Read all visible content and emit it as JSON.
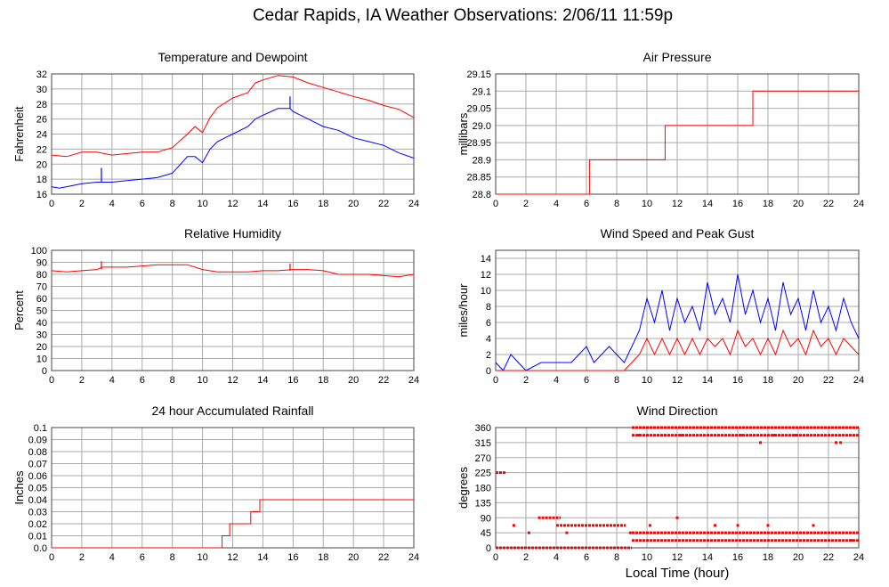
{
  "title": "Cedar Rapids, IA Weather Observations: 2/06/11 11:59p",
  "xlabel": "Local Time (hour)",
  "colors": {
    "red": "#ff0000",
    "blue": "#0000ff",
    "grid": "#aaaaaa",
    "frame": "#444444"
  },
  "chart_data": [
    {
      "id": "temp",
      "type": "line",
      "title": "Temperature and Dewpoint",
      "ylabel": "Fahrenheit",
      "xlim": [
        0,
        24
      ],
      "ylim": [
        16,
        32
      ],
      "xticks": [
        0,
        2,
        4,
        6,
        8,
        10,
        12,
        14,
        16,
        18,
        20,
        22,
        24
      ],
      "yticks": [
        16,
        18,
        20,
        22,
        24,
        26,
        28,
        30,
        32
      ],
      "ytick_labels": [
        "16",
        "18",
        "20",
        "22",
        "24",
        "26",
        "28",
        "30",
        "32"
      ],
      "series": [
        {
          "color": "red",
          "x": [
            0,
            1,
            2,
            3,
            4,
            5,
            6,
            7,
            8,
            9,
            9.5,
            10,
            10.5,
            11,
            12,
            13,
            13.5,
            14,
            15,
            16,
            17,
            18,
            19,
            20,
            21,
            22,
            23,
            24
          ],
          "y": [
            21.2,
            21.0,
            21.6,
            21.6,
            21.2,
            21.4,
            21.6,
            21.6,
            22.2,
            24.0,
            25.0,
            24.2,
            26.2,
            27.5,
            28.8,
            29.5,
            30.8,
            31.2,
            31.8,
            31.6,
            30.8,
            30.2,
            29.6,
            29.0,
            28.5,
            27.8,
            27.3,
            26.2
          ],
          "spikes": []
        },
        {
          "color": "blue",
          "x": [
            0,
            0.5,
            1,
            2,
            3,
            3.3,
            4,
            5,
            6,
            7,
            8,
            9,
            9.5,
            10,
            10.5,
            11,
            12,
            13,
            13.5,
            14,
            15,
            15.8,
            16,
            17,
            18,
            19,
            20,
            21,
            22,
            23,
            24
          ],
          "y": [
            17.0,
            16.8,
            17.0,
            17.4,
            17.6,
            17.6,
            17.6,
            17.8,
            18.0,
            18.2,
            18.8,
            21.0,
            21.0,
            20.2,
            22.0,
            23.0,
            24.0,
            25.0,
            26.0,
            26.5,
            27.4,
            27.4,
            27.0,
            26.0,
            25.0,
            24.5,
            23.5,
            23.0,
            22.5,
            21.5,
            20.8
          ],
          "spikes": [
            [
              3.3,
              19.5
            ],
            [
              15.8,
              29.0
            ]
          ]
        }
      ]
    },
    {
      "id": "pressure",
      "type": "line",
      "title": "Air Pressure",
      "ylabel": "millibars",
      "xlim": [
        0,
        24
      ],
      "ylim": [
        28.8,
        29.15
      ],
      "xticks": [
        0,
        2,
        4,
        6,
        8,
        10,
        12,
        14,
        16,
        18,
        20,
        22,
        24
      ],
      "yticks": [
        28.8,
        28.85,
        28.9,
        28.95,
        29.0,
        29.05,
        29.1,
        29.15
      ],
      "ytick_labels": [
        "28.8",
        "28.85",
        "28.9",
        "28.95",
        "29.0",
        "29.05",
        "29.1",
        "29.15"
      ],
      "series": [
        {
          "color": "red",
          "step": true,
          "x": [
            0,
            6.2,
            11.2,
            17,
            24
          ],
          "y": [
            28.8,
            28.9,
            29.0,
            29.1,
            29.1
          ],
          "spikes": []
        }
      ]
    },
    {
      "id": "humidity",
      "type": "line",
      "title": "Relative Humidity",
      "ylabel": "Percent",
      "xlim": [
        0,
        24
      ],
      "ylim": [
        0,
        100
      ],
      "xticks": [
        0,
        2,
        4,
        6,
        8,
        10,
        12,
        14,
        16,
        18,
        20,
        22,
        24
      ],
      "yticks": [
        0,
        10,
        20,
        30,
        40,
        50,
        60,
        70,
        80,
        90,
        100
      ],
      "ytick_labels": [
        "0",
        "10",
        "20",
        "30",
        "40",
        "50",
        "60",
        "70",
        "80",
        "90",
        "100"
      ],
      "series": [
        {
          "color": "red",
          "x": [
            0,
            1,
            2,
            3,
            3.4,
            4,
            5,
            6,
            7,
            8,
            9,
            10,
            11,
            12,
            13,
            14,
            15,
            16,
            17,
            18,
            19,
            20,
            21,
            22,
            23,
            24
          ],
          "y": [
            83,
            82,
            83,
            84,
            86,
            86,
            86,
            87,
            88,
            88,
            88,
            84,
            82,
            82,
            82,
            83,
            83,
            84,
            84,
            83,
            80,
            80,
            80,
            79,
            78,
            80
          ],
          "spikes": [
            [
              3.3,
              91
            ],
            [
              15.8,
              89
            ]
          ]
        }
      ]
    },
    {
      "id": "wind",
      "type": "line",
      "title": "Wind Speed and Peak Gust",
      "ylabel": "miles/hour",
      "xlim": [
        0,
        24
      ],
      "ylim": [
        0,
        15
      ],
      "xticks": [
        0,
        2,
        4,
        6,
        8,
        10,
        12,
        14,
        16,
        18,
        20,
        22,
        24
      ],
      "yticks": [
        0,
        2,
        4,
        6,
        8,
        10,
        12,
        14
      ],
      "ytick_labels": [
        "0",
        "2",
        "4",
        "6",
        "8",
        "10",
        "12",
        "14"
      ],
      "series": [
        {
          "color": "blue",
          "x": [
            0,
            0.5,
            1,
            2,
            3,
            4,
            5,
            5.5,
            6,
            6.5,
            7,
            7.5,
            8,
            8.5,
            9,
            9.5,
            10,
            10.5,
            11,
            11.5,
            12,
            12.5,
            13,
            13.5,
            14,
            14.5,
            15,
            15.5,
            16,
            16.5,
            17,
            17.5,
            18,
            18.5,
            19,
            19.5,
            20,
            20.5,
            21,
            21.5,
            22,
            22.5,
            23,
            23.5,
            24
          ],
          "y": [
            1,
            0,
            2,
            0,
            1,
            1,
            1,
            2,
            3,
            1,
            2,
            3,
            2,
            1,
            3,
            5,
            9,
            6,
            10,
            5,
            9,
            6,
            8,
            5,
            11,
            7,
            9,
            6,
            12,
            7,
            10,
            6,
            9,
            5,
            11,
            7,
            9,
            5,
            10,
            6,
            8,
            5,
            9,
            6,
            4
          ],
          "spikes": []
        },
        {
          "color": "red",
          "x": [
            0,
            8.5,
            9,
            9.5,
            10,
            10.5,
            11,
            11.5,
            12,
            12.5,
            13,
            13.5,
            14,
            14.5,
            15,
            15.5,
            16,
            16.5,
            17,
            17.5,
            18,
            18.5,
            19,
            19.5,
            20,
            20.5,
            21,
            21.5,
            22,
            22.5,
            23,
            23.5,
            24
          ],
          "y": [
            0,
            0,
            1,
            2,
            4,
            2,
            4,
            2,
            4,
            2,
            4,
            2,
            4,
            3,
            4,
            2,
            5,
            3,
            4,
            2,
            4,
            2,
            5,
            3,
            4,
            2,
            5,
            3,
            4,
            2,
            4,
            3,
            2
          ],
          "spikes": []
        }
      ]
    },
    {
      "id": "rain",
      "type": "line",
      "title": "24 hour Accumulated Rainfall",
      "ylabel": "Inches",
      "xlim": [
        0,
        24
      ],
      "ylim": [
        0,
        0.1
      ],
      "xticks": [
        0,
        2,
        4,
        6,
        8,
        10,
        12,
        14,
        16,
        18,
        20,
        22,
        24
      ],
      "yticks": [
        0,
        0.01,
        0.02,
        0.03,
        0.04,
        0.05,
        0.06,
        0.07,
        0.08,
        0.09,
        0.1
      ],
      "ytick_labels": [
        "0.0",
        "0.01",
        "0.02",
        "0.03",
        "0.04",
        "0.05",
        "0.06",
        "0.07",
        "0.08",
        "0.09",
        "0.1"
      ],
      "series": [
        {
          "color": "red",
          "step": true,
          "x": [
            0,
            11.3,
            11.8,
            13.2,
            13.8,
            24
          ],
          "y": [
            0,
            0.01,
            0.02,
            0.03,
            0.04,
            0.04
          ],
          "spikes": []
        }
      ]
    },
    {
      "id": "direction",
      "type": "scatter",
      "title": "Wind Direction",
      "ylabel": "degrees",
      "xlim": [
        0,
        24
      ],
      "ylim": [
        0,
        360
      ],
      "xticks": [
        0,
        2,
        4,
        6,
        8,
        10,
        12,
        14,
        16,
        18,
        20,
        22,
        24
      ],
      "yticks": [
        0,
        45,
        90,
        135,
        180,
        225,
        270,
        315,
        360
      ],
      "ytick_labels": [
        "0",
        "45",
        "90",
        "135",
        "180",
        "225",
        "270",
        "315",
        "360"
      ],
      "bands": [
        {
          "from": 0.0,
          "to": 0.7,
          "y": 225
        },
        {
          "from": 0.0,
          "to": 9.0,
          "y": 0
        },
        {
          "from": 2.8,
          "to": 4.3,
          "y": 90
        },
        {
          "from": 4.0,
          "to": 8.6,
          "y": 67
        },
        {
          "from": 9.0,
          "to": 24.0,
          "y": 360
        },
        {
          "from": 9.0,
          "to": 24.0,
          "y": 22
        },
        {
          "from": 9.0,
          "to": 24.0,
          "y": 45
        },
        {
          "from": 9.0,
          "to": 24.0,
          "y": 337
        }
      ],
      "points": [
        [
          1.2,
          67
        ],
        [
          2.2,
          45
        ],
        [
          8.9,
          45
        ],
        [
          12.0,
          90
        ],
        [
          14.5,
          67
        ],
        [
          16.0,
          67
        ],
        [
          17.5,
          315
        ],
        [
          18.0,
          67
        ],
        [
          21.0,
          67
        ],
        [
          22.5,
          315
        ],
        [
          22.8,
          315
        ],
        [
          23.5,
          22
        ],
        [
          9.5,
          337
        ],
        [
          11.2,
          337
        ],
        [
          12.3,
          337
        ],
        [
          16.2,
          337
        ],
        [
          18.4,
          337
        ],
        [
          19.8,
          337
        ],
        [
          4.7,
          45
        ],
        [
          10.2,
          67
        ]
      ]
    }
  ]
}
